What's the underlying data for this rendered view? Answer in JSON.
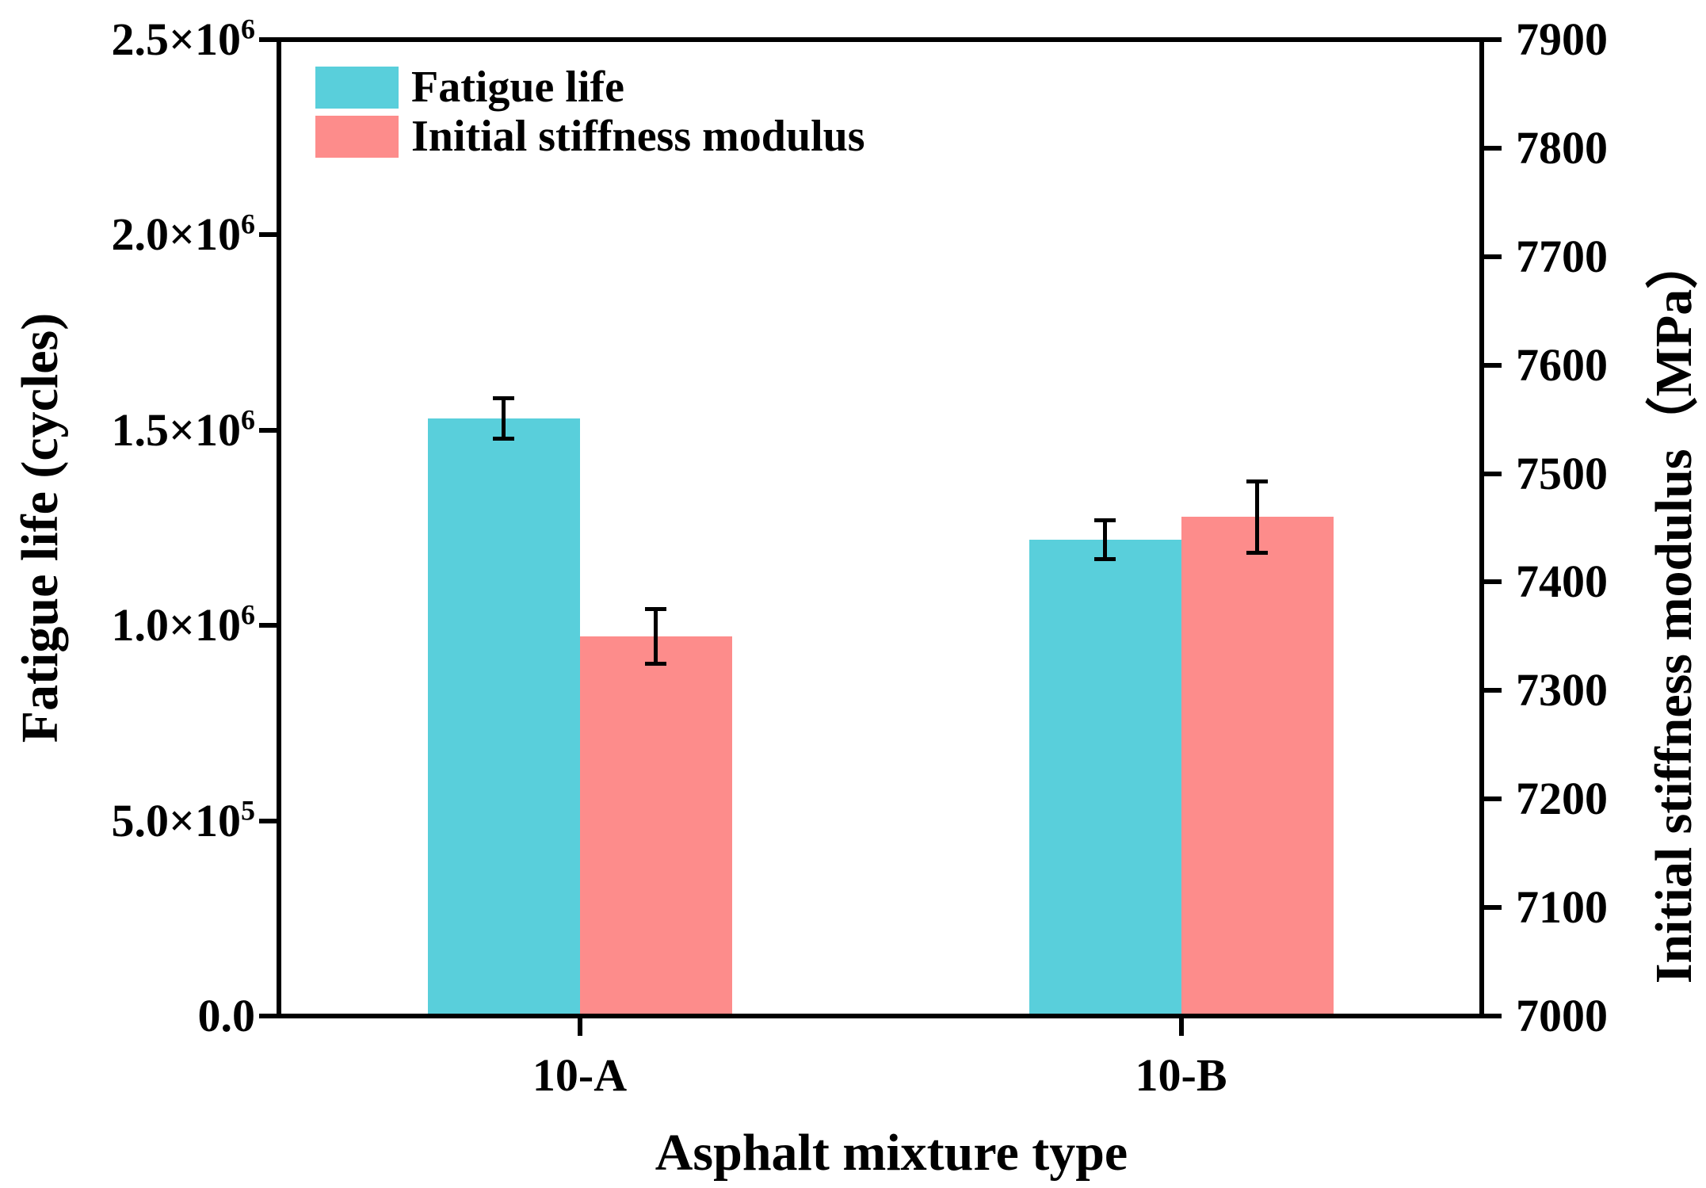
{
  "page": {
    "background": "#ffffff"
  },
  "chart_data": {
    "type": "bar",
    "title": "",
    "categories": [
      "10-A",
      "10-B"
    ],
    "xlabel": "Asphalt mixture type",
    "grid": false,
    "legend_position": "top-left",
    "axis_color": "#000000",
    "left_axis": {
      "label": "Fatigue life (cycles)",
      "min": 0,
      "max": 2500000,
      "ticks": [
        {
          "v": 0,
          "label": "0.0"
        },
        {
          "v": 500000,
          "label": "5.0×10^5"
        },
        {
          "v": 1000000,
          "label": "1.0×10^6"
        },
        {
          "v": 1500000,
          "label": "1.5×10^6"
        },
        {
          "v": 2000000,
          "label": "2.0×10^6"
        },
        {
          "v": 2500000,
          "label": "2.5×10^6"
        }
      ]
    },
    "right_axis": {
      "label": "Initial stiffness modulus（MPa）",
      "min": 7000,
      "max": 7900,
      "ticks": [
        {
          "v": 7000,
          "label": "7000"
        },
        {
          "v": 7100,
          "label": "7100"
        },
        {
          "v": 7200,
          "label": "7200"
        },
        {
          "v": 7300,
          "label": "7300"
        },
        {
          "v": 7400,
          "label": "7400"
        },
        {
          "v": 7500,
          "label": "7500"
        },
        {
          "v": 7600,
          "label": "7600"
        },
        {
          "v": 7700,
          "label": "7700"
        },
        {
          "v": 7800,
          "label": "7800"
        },
        {
          "v": 7900,
          "label": "7900"
        }
      ]
    },
    "series": [
      {
        "name": "Fatigue life",
        "axis": "left",
        "color": "#59CFDB",
        "values": [
          1530000,
          1220000
        ],
        "errors": [
          52000,
          50000
        ]
      },
      {
        "name": "Initial stiffness modulus",
        "axis": "right",
        "color": "#FD8C8B",
        "values": [
          7350,
          7460
        ],
        "errors": [
          25,
          33
        ]
      }
    ]
  }
}
